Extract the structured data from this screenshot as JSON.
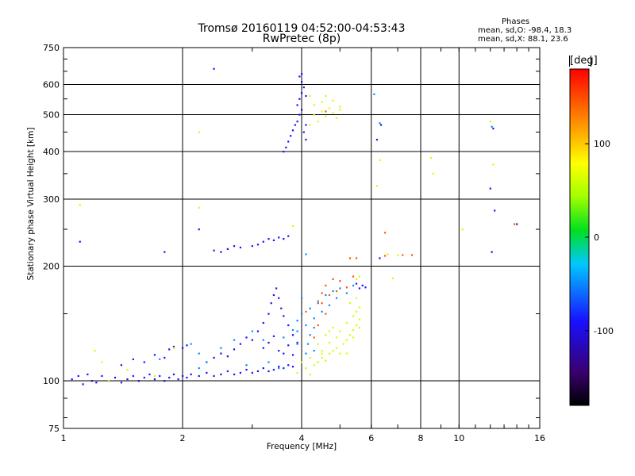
{
  "header": {
    "title": "Tromsø 20160119 04:52:00-04:53:43",
    "subtitle": "RwPretec (8p)",
    "phases": {
      "heading": "Phases",
      "line_o": "mean, sd,O: -98.4, 18.3",
      "line_x": "mean, sd,X:  88.1, 23.6"
    }
  },
  "chart_data": {
    "type": "scatter",
    "xlabel": "Frequency [MHz]",
    "ylabel": "Stationary phase Virtual Height [km]",
    "xscale": "log",
    "yscale": "log",
    "xlim": [
      1,
      16
    ],
    "ylim": [
      75,
      750
    ],
    "xticks": [
      1,
      2,
      4,
      6,
      8,
      10,
      16
    ],
    "xtick_labels": [
      "1",
      "2",
      "4",
      "6",
      "8",
      "10",
      "16"
    ],
    "xgrid": [
      2,
      4,
      6,
      8,
      10
    ],
    "yticks": [
      75,
      100,
      200,
      300,
      400,
      500,
      600,
      750
    ],
    "ytick_labels": [
      "75",
      "100",
      "200",
      "300",
      "400",
      "500",
      "600",
      "750"
    ],
    "ygrid": [
      100,
      200,
      300,
      400,
      500,
      600
    ],
    "grid": true,
    "colorbar": {
      "label": "[deg]",
      "range": [
        -180,
        180
      ],
      "ticks": [
        100,
        0,
        -100
      ],
      "tick_labels": [
        "100",
        "0",
        "-100"
      ]
    },
    "series": [
      {
        "phase_deg": -100,
        "points": [
          [
            1.05,
            101
          ],
          [
            1.09,
            103
          ],
          [
            1.12,
            98
          ],
          [
            1.15,
            104
          ],
          [
            1.18,
            100
          ],
          [
            1.21,
            99
          ],
          [
            1.25,
            103
          ],
          [
            1.3,
            100
          ],
          [
            1.35,
            102
          ],
          [
            1.4,
            99
          ],
          [
            1.45,
            101
          ],
          [
            1.5,
            103
          ],
          [
            1.55,
            100
          ],
          [
            1.6,
            102
          ],
          [
            1.65,
            104
          ],
          [
            1.7,
            101
          ],
          [
            1.75,
            103
          ],
          [
            1.8,
            100
          ],
          [
            1.85,
            102
          ],
          [
            1.9,
            104
          ],
          [
            1.95,
            101
          ],
          [
            2.0,
            103
          ],
          [
            2.05,
            102
          ],
          [
            2.1,
            104
          ],
          [
            2.2,
            103
          ],
          [
            2.3,
            105
          ],
          [
            2.4,
            103
          ],
          [
            2.5,
            104
          ],
          [
            2.6,
            106
          ],
          [
            2.7,
            104
          ],
          [
            2.8,
            105
          ],
          [
            2.9,
            107
          ],
          [
            3.0,
            105
          ],
          [
            3.1,
            106
          ],
          [
            3.2,
            108
          ],
          [
            3.3,
            106
          ],
          [
            3.4,
            107
          ],
          [
            3.5,
            109
          ],
          [
            3.6,
            108
          ],
          [
            3.7,
            110
          ],
          [
            3.8,
            109
          ],
          [
            1.4,
            110
          ],
          [
            1.5,
            114
          ],
          [
            1.6,
            112
          ],
          [
            1.7,
            117
          ],
          [
            1.8,
            115
          ],
          [
            1.85,
            121
          ],
          [
            1.9,
            123
          ],
          [
            2.0,
            122
          ],
          [
            2.05,
            124
          ],
          [
            2.3,
            112
          ],
          [
            2.4,
            115
          ],
          [
            2.5,
            118
          ],
          [
            2.6,
            116
          ],
          [
            2.7,
            121
          ],
          [
            2.8,
            125
          ],
          [
            2.9,
            130
          ],
          [
            3.0,
            128
          ],
          [
            3.1,
            135
          ],
          [
            3.2,
            142
          ],
          [
            3.3,
            150
          ],
          [
            3.35,
            160
          ],
          [
            3.4,
            168
          ],
          [
            3.45,
            175
          ],
          [
            3.5,
            165
          ],
          [
            3.55,
            155
          ],
          [
            3.6,
            148
          ],
          [
            3.7,
            140
          ],
          [
            3.8,
            132
          ],
          [
            3.9,
            126
          ],
          [
            3.5,
            120
          ],
          [
            3.6,
            118
          ],
          [
            3.7,
            124
          ],
          [
            3.8,
            117
          ],
          [
            3.2,
            122
          ],
          [
            3.3,
            126
          ],
          [
            3.4,
            131
          ],
          [
            2.4,
            220
          ],
          [
            2.5,
            218
          ],
          [
            2.6,
            222
          ],
          [
            2.7,
            226
          ],
          [
            2.8,
            224
          ],
          [
            3.0,
            226
          ],
          [
            3.1,
            228
          ],
          [
            3.2,
            232
          ],
          [
            3.3,
            236
          ],
          [
            3.4,
            234
          ],
          [
            3.5,
            238
          ],
          [
            3.6,
            236
          ],
          [
            3.7,
            240
          ],
          [
            1.8,
            218
          ],
          [
            2.2,
            250
          ],
          [
            3.6,
            400
          ],
          [
            3.65,
            410
          ],
          [
            3.7,
            425
          ],
          [
            3.75,
            440
          ],
          [
            3.8,
            455
          ],
          [
            3.85,
            470
          ],
          [
            3.9,
            480
          ],
          [
            3.95,
            500
          ],
          [
            4.0,
            515
          ],
          [
            3.9,
            530
          ],
          [
            3.95,
            550
          ],
          [
            4.0,
            570
          ],
          [
            4.05,
            590
          ],
          [
            4.0,
            610
          ],
          [
            3.95,
            630
          ],
          [
            4.0,
            640
          ],
          [
            4.1,
            560
          ],
          [
            4.1,
            430
          ],
          [
            4.05,
            450
          ],
          [
            4.1,
            470
          ],
          [
            5.6,
            175
          ],
          [
            5.7,
            178
          ],
          [
            5.8,
            176
          ],
          [
            5.5,
            180
          ],
          [
            6.3,
            210
          ],
          [
            6.2,
            430
          ],
          [
            6.35,
            470
          ],
          [
            12.2,
            460
          ],
          [
            12.0,
            320
          ],
          [
            12.3,
            280
          ],
          [
            14.0,
            258
          ],
          [
            12.1,
            218
          ],
          [
            1.1,
            232
          ],
          [
            2.4,
            660
          ]
        ]
      },
      {
        "phase_deg": -60,
        "points": [
          [
            2.1,
            125
          ],
          [
            2.2,
            118
          ],
          [
            2.3,
            112
          ],
          [
            2.5,
            122
          ],
          [
            2.7,
            128
          ],
          [
            3.0,
            135
          ],
          [
            3.2,
            128
          ],
          [
            3.6,
            130
          ],
          [
            3.8,
            136
          ],
          [
            3.9,
            144
          ],
          [
            4.0,
            150
          ],
          [
            4.1,
            140
          ],
          [
            4.2,
            155
          ],
          [
            4.3,
            146
          ],
          [
            4.4,
            160
          ],
          [
            4.5,
            152
          ],
          [
            4.6,
            168
          ],
          [
            4.7,
            158
          ],
          [
            4.8,
            172
          ],
          [
            4.9,
            165
          ],
          [
            4.15,
            125
          ],
          [
            4.3,
            120
          ],
          [
            4.1,
            118
          ],
          [
            3.9,
            135
          ],
          [
            4.2,
            132
          ],
          [
            5.0,
            175
          ],
          [
            5.2,
            170
          ],
          [
            5.4,
            178
          ],
          [
            3.5,
            108
          ],
          [
            3.3,
            112
          ],
          [
            2.9,
            110
          ],
          [
            4.0,
            165
          ],
          [
            4.1,
            215
          ],
          [
            6.1,
            566
          ],
          [
            6.3,
            475
          ],
          [
            12.1,
            465
          ],
          [
            3.9,
            125
          ],
          [
            4.3,
            138
          ],
          [
            1.75,
            114
          ],
          [
            2.2,
            108
          ]
        ]
      },
      {
        "phase_deg": 60,
        "points": [
          [
            4.3,
            110
          ],
          [
            4.4,
            112
          ],
          [
            4.5,
            115
          ],
          [
            4.6,
            113
          ],
          [
            4.7,
            118
          ],
          [
            4.8,
            120
          ],
          [
            4.9,
            122
          ],
          [
            5.0,
            118
          ],
          [
            5.1,
            125
          ],
          [
            5.2,
            128
          ],
          [
            5.3,
            132
          ],
          [
            5.4,
            136
          ],
          [
            5.5,
            140
          ],
          [
            5.6,
            145
          ],
          [
            5.4,
            148
          ],
          [
            5.5,
            152
          ],
          [
            5.6,
            156
          ],
          [
            5.3,
            160
          ],
          [
            5.5,
            165
          ],
          [
            4.5,
            120
          ],
          [
            4.7,
            126
          ],
          [
            4.9,
            130
          ],
          [
            4.4,
            125
          ],
          [
            4.6,
            132
          ],
          [
            4.8,
            138
          ],
          [
            5.0,
            135
          ],
          [
            5.2,
            142
          ],
          [
            4.3,
            500
          ],
          [
            4.4,
            480
          ],
          [
            4.5,
            510
          ],
          [
            4.6,
            495
          ],
          [
            4.7,
            520
          ],
          [
            4.8,
            505
          ],
          [
            4.9,
            490
          ],
          [
            5.0,
            515
          ],
          [
            4.2,
            470
          ],
          [
            4.3,
            530
          ],
          [
            4.5,
            540
          ],
          [
            4.8,
            545
          ],
          [
            5.0,
            525
          ],
          [
            4.2,
            560
          ],
          [
            4.6,
            560
          ],
          [
            5.5,
            185
          ],
          [
            5.6,
            188
          ],
          [
            6.3,
            380
          ],
          [
            6.2,
            325
          ],
          [
            8.6,
            350
          ],
          [
            8.5,
            385
          ],
          [
            12.2,
            370
          ],
          [
            12.0,
            480
          ],
          [
            6.6,
            215
          ],
          [
            7.0,
            214
          ],
          [
            10.2,
            250
          ],
          [
            4.2,
            115
          ],
          [
            4.1,
            108
          ],
          [
            1.25,
            112
          ],
          [
            1.45,
            107
          ],
          [
            1.7,
            103
          ],
          [
            2.2,
            285
          ],
          [
            2.2,
            450
          ],
          [
            6.8,
            186
          ],
          [
            3.8,
            255
          ],
          [
            1.9,
            122
          ],
          [
            4.5,
            118
          ],
          [
            4.7,
            135
          ],
          [
            5.2,
            118
          ],
          [
            5.4,
            130
          ],
          [
            5.6,
            138
          ],
          [
            3.9,
            105
          ],
          [
            4.0,
            112
          ],
          [
            4.2,
            104
          ],
          [
            1.1,
            290
          ],
          [
            1.2,
            120
          ],
          [
            1.3,
            100
          ]
        ]
      },
      {
        "phase_deg": 150,
        "points": [
          [
            4.6,
            178
          ],
          [
            4.8,
            185
          ],
          [
            5.0,
            183
          ],
          [
            5.2,
            176
          ],
          [
            5.4,
            188
          ],
          [
            4.4,
            162
          ],
          [
            4.5,
            170
          ],
          [
            4.7,
            168
          ],
          [
            4.9,
            172
          ],
          [
            5.3,
            210
          ],
          [
            5.5,
            210
          ],
          [
            6.5,
            245
          ],
          [
            7.2,
            214
          ],
          [
            7.6,
            214
          ],
          [
            6.5,
            213
          ],
          [
            4.6,
            150
          ],
          [
            4.4,
            140
          ],
          [
            4.3,
            130
          ],
          [
            4.5,
            160
          ],
          [
            4.1,
            152
          ],
          [
            13.8,
            258
          ],
          [
            4.6,
            510
          ]
        ]
      }
    ]
  }
}
